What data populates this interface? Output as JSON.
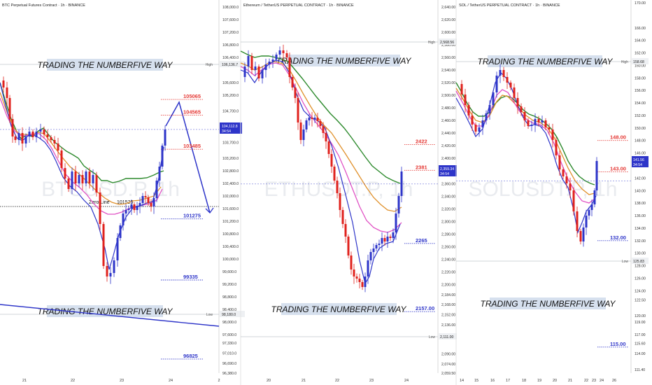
{
  "panels": [
    {
      "title": "BTC Perpetual Futures Contract · 1h · BINANCE",
      "watermark": "BTCUSD.P, 1h",
      "banner_text": "TRADING THE NUMBERFIVE WAY",
      "high_tag": "High",
      "high_value": "106,136.7",
      "low_tag": "Low",
      "low_value": "98,180.0",
      "price_tag_value": "104,112.8",
      "price_tag_time": "34:54"
    },
    {
      "title": "Ethereum / TetherUS PERPETUAL CONTRACT · 1h · BINANCE",
      "watermark": "ETHUSDT.P, 1h",
      "banner_text": "TRADING THE NUMBERFIVE WAY",
      "high_tag": "High",
      "high_value": "2,568.56",
      "low_tag": "Low",
      "low_value": "2,111.00",
      "price_tag_value": "2,359.34",
      "price_tag_time": "34:54"
    },
    {
      "title": "SOL / TetherUS PERPETUAL CONTRACT · 1h · BINANCE",
      "watermark": "SOLUSDT.P, 1h",
      "banner_text": "TRADING THE NUMBERFIVE WAY",
      "high_tag": "High",
      "high_value": "158.68",
      "low_tag": "Low",
      "low_value": "125.83",
      "price_tag_value": "141.56",
      "price_tag_time": "34:54"
    }
  ],
  "chart_data": [
    {
      "type": "candlestick",
      "title": "BTC Perpetual Futures Contract · 1h · BINANCE",
      "ylim": [
        96380,
        108000
      ],
      "y_ticks": [
        "108,000.0",
        "107,600.0",
        "107,200.0",
        "106,800.0",
        "106,400.0",
        "105,600.0",
        "105,200.0",
        "104,700.0",
        "103,700.0",
        "103,200.0",
        "102,800.0",
        "102,400.0",
        "102,000.0",
        "101,600.0",
        "101,200.0",
        "100,800.0",
        "100,400.0",
        "100,000.0",
        "99,600.0",
        "99,200.0",
        "98,800.0",
        "98,400.0",
        "98,000.0",
        "97,600.0",
        "97,330.0",
        "97,010.0",
        "96,690.0",
        "96,380.0"
      ],
      "x_ticks": [
        "21",
        "22",
        "23",
        "24",
        "2"
      ],
      "price_levels": [
        {
          "label": "105065",
          "value": 105065,
          "color": "#e53935"
        },
        {
          "label": "104565",
          "value": 104565,
          "color": "#e53935"
        },
        {
          "label": "103485",
          "value": 103485,
          "color": "#e53935"
        },
        {
          "label": "101275",
          "value": 101275,
          "color": "#2e35c9"
        },
        {
          "label": "99335",
          "value": 99335,
          "color": "#2e35c9"
        },
        {
          "label": "96825",
          "value": 96825,
          "color": "#2e35c9"
        }
      ],
      "annotation": {
        "zero_line_label": "Zero Line",
        "zero_line_value": "101525"
      },
      "last_price": 104112.8,
      "high": 106136.7,
      "low": 98180.0,
      "projection_path_prices": [
        104113,
        104850,
        101350
      ]
    },
    {
      "type": "candlestick",
      "title": "Ethereum / TetherUS PERPETUAL CONTRACT · 1h · BINANCE",
      "ylim": [
        2059.5,
        2640
      ],
      "y_ticks": [
        "2,640.00",
        "2,620.00",
        "2,600.00",
        "2,580.00",
        "2,560.00",
        "2,540.00",
        "2,520.00",
        "2,500.00",
        "2,480.00",
        "2,460.00",
        "2,440.00",
        "2,420.00",
        "2,400.00",
        "2,380.00",
        "2,360.00",
        "2,340.00",
        "2,320.00",
        "2,300.00",
        "2,280.00",
        "2,260.00",
        "2,240.00",
        "2,220.00",
        "2,200.00",
        "2,184.00",
        "2,168.00",
        "2,152.00",
        "2,136.00",
        "2,120.00",
        "2,090.00",
        "2,074.00",
        "2,059.50"
      ],
      "x_ticks": [
        "20",
        "21",
        "22",
        "23",
        "24"
      ],
      "price_levels": [
        {
          "label": "2422",
          "value": 2422,
          "color": "#e53935"
        },
        {
          "label": "2381",
          "value": 2381,
          "color": "#e53935"
        },
        {
          "label": "2265",
          "value": 2265,
          "color": "#2e35c9"
        },
        {
          "label": "2157.00",
          "value": 2157,
          "color": "#2e35c9"
        }
      ],
      "last_price": 2359.34,
      "high": 2568.56,
      "low": 2111.0
    },
    {
      "type": "candlestick",
      "title": "SOL / TetherUS PERPETUAL CONTRACT · 1h · BINANCE",
      "ylim": [
        111.4,
        170
      ],
      "y_ticks": [
        "170.00",
        "166.00",
        "164.00",
        "162.00",
        "160.00",
        "158.00",
        "156.00",
        "154.00",
        "152.00",
        "150.00",
        "148.00",
        "146.00",
        "144.00",
        "142.00",
        "140.00",
        "138.00",
        "136.00",
        "134.00",
        "132.00",
        "130.00",
        "128.00",
        "126.00",
        "124.00",
        "122.50",
        "120.00",
        "119.00",
        "117.00",
        "115.60",
        "114.00",
        "111.40"
      ],
      "x_ticks": [
        "14",
        "15",
        "16",
        "17",
        "18",
        "19",
        "20",
        "21",
        "22",
        "23",
        "24",
        "26"
      ],
      "price_levels": [
        {
          "label": "148.00",
          "value": 148,
          "color": "#e53935"
        },
        {
          "label": "143.00",
          "value": 143,
          "color": "#e53935"
        },
        {
          "label": "132.00",
          "value": 132,
          "color": "#2e35c9"
        },
        {
          "label": "115.00",
          "value": 115,
          "color": "#2e35c9"
        }
      ],
      "last_price": 141.56,
      "high": 158.68,
      "low": 125.83
    }
  ]
}
